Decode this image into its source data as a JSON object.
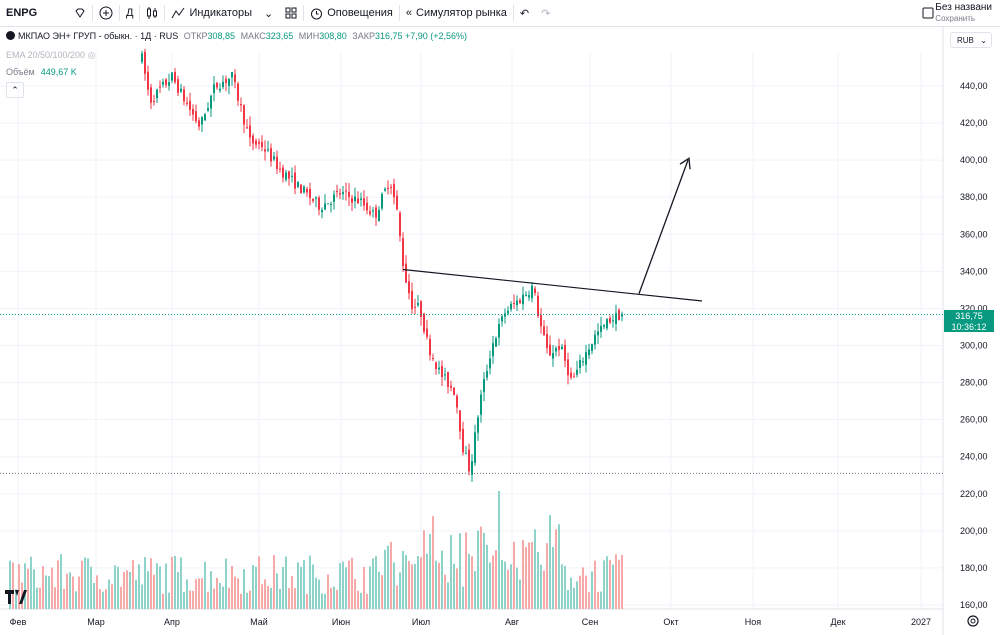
{
  "toolbar": {
    "symbol": "ENPG",
    "interval": "Д",
    "indicators": "Индикаторы",
    "alerts": "Оповещения",
    "replay": "Симулятор рынка",
    "layout_name": "Без названи",
    "layout_saved": "Сохранить"
  },
  "legend": {
    "title": "МКПАО ЭН+ ГРУП - обыкн. · 1Д · RUS",
    "open_label": "ОТКР",
    "open": "308,85",
    "high_label": "МАКС",
    "high": "323,65",
    "low_label": "МИН",
    "low": "308,80",
    "close_label": "ЗАКР",
    "close": "316,75",
    "change": "+7,90 (+2,56%)",
    "ema": "EMA 20/50/100/200",
    "volume_label": "Объём",
    "volume": "449,67 K"
  },
  "price_axis": {
    "currency": "RUB",
    "last_price": "316,75",
    "countdown": "10:36:12",
    "ticks": [
      "440,00",
      "420,00",
      "400,00",
      "380,00",
      "360,00",
      "340,00",
      "320,00",
      "300,00",
      "280,00",
      "260,00",
      "240,00",
      "220,00",
      "200,00",
      "180,00",
      "160,00"
    ]
  },
  "time_axis": {
    "labels": [
      "Фев",
      "Мар",
      "Апр",
      "Май",
      "Июн",
      "Июл",
      "Авг",
      "Сен",
      "Окт",
      "Ноя",
      "Дек",
      "2027"
    ]
  },
  "colors": {
    "up": "#089981",
    "down": "#f23645",
    "vol_up": "#8dd3c9",
    "vol_down": "#f7a9a7"
  },
  "chart_data": {
    "type": "candlestick",
    "symbol": "ENPG",
    "interval": "1D",
    "ylim": [
      155,
      460
    ],
    "ohlc_key_points": [
      {
        "period": "Feb start",
        "price": 455
      },
      {
        "period": "Mar",
        "price": 430
      },
      {
        "period": "Apr",
        "price": 445
      },
      {
        "period": "May",
        "price": 410
      },
      {
        "period": "Jun",
        "price": 385
      },
      {
        "period": "Jun end",
        "price": 340
      },
      {
        "period": "Jul",
        "price": 305
      },
      {
        "period": "Jul low",
        "price": 232
      },
      {
        "period": "Aug high",
        "price": 333
      },
      {
        "period": "Aug",
        "price": 290
      },
      {
        "period": "Sep",
        "price": 316.75
      }
    ],
    "drawings": [
      {
        "type": "trendline",
        "from": [
          "Jun end",
          341
        ],
        "to": [
          "Sep end",
          324
        ]
      },
      {
        "type": "arrow",
        "from": [
          "Sep end",
          328
        ],
        "to": [
          "Sep end",
          400
        ]
      }
    ]
  }
}
